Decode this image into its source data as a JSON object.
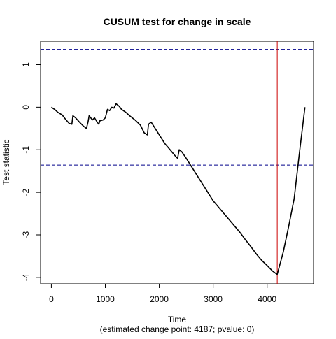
{
  "chart_data": {
    "type": "line",
    "title": "CUSUM test for change in scale",
    "xlabel": "Time",
    "subtitle": "(estimated change point: 4187; pvalue: 0)",
    "ylabel": "Test statistic",
    "xlim": [
      -200,
      4860
    ],
    "ylim": [
      -4.15,
      1.55
    ],
    "x_ticks": [
      0,
      1000,
      2000,
      3000,
      4000
    ],
    "x_tick_labels": [
      "0",
      "1000",
      "2000",
      "3000",
      "4000"
    ],
    "y_ticks": [
      -4,
      -3,
      -2,
      -1,
      0,
      1
    ],
    "y_tick_labels": [
      "-4",
      "-3",
      "-2",
      "-1",
      "0",
      "1"
    ],
    "grid": false,
    "series": [
      {
        "color": "#000000",
        "x": [
          0,
          60,
          120,
          200,
          260,
          330,
          380,
          400,
          450,
          520,
          600,
          650,
          680,
          700,
          760,
          800,
          850,
          880,
          900,
          960,
          1000,
          1040,
          1080,
          1120,
          1160,
          1200,
          1260,
          1300,
          1380,
          1450,
          1550,
          1650,
          1720,
          1780,
          1800,
          1850,
          1900,
          2000,
          2100,
          2200,
          2300,
          2340,
          2370,
          2420,
          2500,
          2600,
          2700,
          2800,
          2900,
          3000,
          3100,
          3200,
          3300,
          3400,
          3500,
          3600,
          3700,
          3800,
          3900,
          4000,
          4100,
          4187,
          4300,
          4400,
          4500,
          4600,
          4700
        ],
        "y": [
          0.0,
          -0.05,
          -0.12,
          -0.18,
          -0.28,
          -0.38,
          -0.4,
          -0.2,
          -0.25,
          -0.35,
          -0.45,
          -0.5,
          -0.35,
          -0.2,
          -0.3,
          -0.25,
          -0.35,
          -0.4,
          -0.32,
          -0.3,
          -0.25,
          -0.05,
          -0.08,
          0.0,
          -0.02,
          0.08,
          0.02,
          -0.05,
          -0.12,
          -0.2,
          -0.3,
          -0.42,
          -0.6,
          -0.65,
          -0.4,
          -0.35,
          -0.45,
          -0.65,
          -0.85,
          -1.0,
          -1.15,
          -1.2,
          -1.0,
          -1.05,
          -1.2,
          -1.4,
          -1.6,
          -1.8,
          -2.0,
          -2.2,
          -2.35,
          -2.5,
          -2.65,
          -2.8,
          -2.95,
          -3.12,
          -3.28,
          -3.45,
          -3.6,
          -3.72,
          -3.85,
          -3.93,
          -3.4,
          -2.8,
          -2.15,
          -1.05,
          0.0
        ]
      }
    ],
    "reference_lines": [
      {
        "orientation": "horizontal",
        "value": 1.36,
        "color": "#00008b",
        "style": "dashed"
      },
      {
        "orientation": "horizontal",
        "value": -1.36,
        "color": "#00008b",
        "style": "dashed"
      },
      {
        "orientation": "vertical",
        "value": 4187,
        "color": "#cc0000",
        "style": "solid"
      }
    ]
  }
}
